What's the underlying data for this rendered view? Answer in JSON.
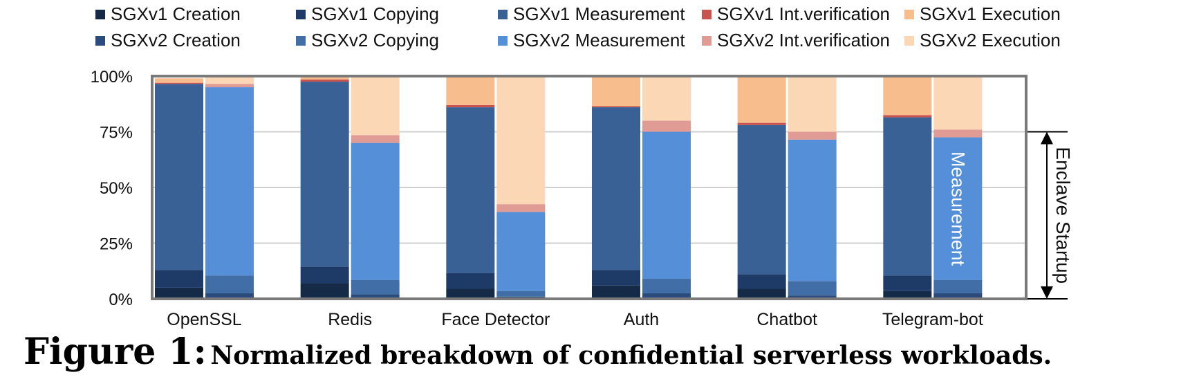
{
  "chart_data": {
    "type": "bar",
    "stacked": true,
    "normalized": true,
    "categories": [
      "OpenSSL",
      "Redis",
      "Face Detector",
      "Auth",
      "Chatbot",
      "Telegram-bot"
    ],
    "groups": [
      "SGXv1",
      "SGXv2"
    ],
    "yticks": [
      "0%",
      "25%",
      "50%",
      "75%",
      "100%"
    ],
    "ylim": [
      0,
      100
    ],
    "grid": true,
    "legend_position": "top",
    "series": [
      {
        "name": "SGXv1 Creation",
        "group": "SGXv1",
        "color": "#142a47",
        "values": [
          5,
          7,
          4.5,
          6,
          4.5,
          3.5
        ]
      },
      {
        "name": "SGXv1 Copying",
        "group": "SGXv1",
        "color": "#1e3b68",
        "values": [
          8,
          7.5,
          7,
          7,
          6.5,
          7
        ]
      },
      {
        "name": "SGXv1 Measurement",
        "group": "SGXv1",
        "color": "#3a6195",
        "values": [
          83.5,
          83,
          74.5,
          73,
          67,
          71
        ]
      },
      {
        "name": "SGXv1 Int.verification",
        "group": "SGXv1",
        "color": "#c9534f",
        "values": [
          0.5,
          1,
          1,
          0.5,
          1,
          1
        ]
      },
      {
        "name": "SGXv1 Execution",
        "group": "SGXv1",
        "color": "#f7bd8c",
        "values": [
          2,
          1.5,
          13,
          13.5,
          21,
          17.5
        ]
      },
      {
        "name": "SGXv2 Creation",
        "group": "SGXv2",
        "color": "#2a4b7c",
        "values": [
          2.5,
          2,
          1,
          2.5,
          1.5,
          2.5
        ]
      },
      {
        "name": "SGXv2 Copying",
        "group": "SGXv2",
        "color": "#416ea6",
        "values": [
          8,
          6.5,
          2.5,
          6.5,
          6.5,
          6
        ]
      },
      {
        "name": "SGXv2 Measurement",
        "group": "SGXv2",
        "color": "#558fd8",
        "values": [
          84.5,
          61.5,
          35.5,
          66,
          63.5,
          64
        ]
      },
      {
        "name": "SGXv2 Int.verification",
        "group": "SGXv2",
        "color": "#e09b94",
        "values": [
          1.5,
          3.5,
          3.5,
          5,
          3.5,
          3.5
        ]
      },
      {
        "name": "SGXv2 Execution",
        "group": "SGXv2",
        "color": "#fcd7b5",
        "values": [
          3.5,
          26.5,
          57.5,
          20,
          25,
          24
        ]
      }
    ],
    "annotations": {
      "bar_label": "Measurement",
      "bracket_label": "Enclave Startup"
    }
  },
  "caption": {
    "label": "Figure 1:",
    "text": "Normalized breakdown of confidential serverless workloads."
  }
}
